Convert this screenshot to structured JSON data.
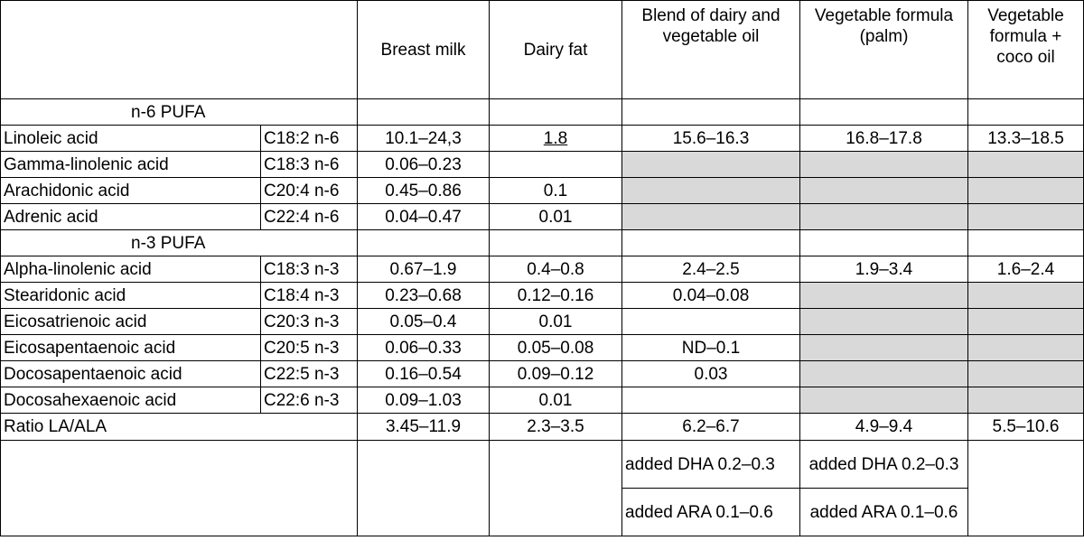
{
  "headers": {
    "breast_milk": "Breast milk",
    "dairy_fat": "Dairy fat",
    "blend": "Blend of dairy and vegetable oil",
    "veg_palm": "Vegetable formula (palm)",
    "veg_coco": "Vegetable formula + coco oil"
  },
  "sections": {
    "n6": "n-6 PUFA",
    "n3": "n-3 PUFA"
  },
  "rows": {
    "linoleic": {
      "name": "Linoleic acid",
      "code": "C18:2 n-6",
      "breast": "10.1–24,3",
      "dairy": "1.8",
      "blend": "15.6–16.3",
      "palm": "16.8–17.8",
      "coco": "13.3–18.5"
    },
    "gamma_linolenic": {
      "name": "Gamma-linolenic acid",
      "code": "C18:3 n-6",
      "breast": "0.06–0.23",
      "dairy": ""
    },
    "arachidonic": {
      "name": "Arachidonic acid",
      "code": "C20:4 n-6",
      "breast": "0.45–0.86",
      "dairy": "0.1"
    },
    "adrenic": {
      "name": "Adrenic acid",
      "code": "C22:4 n-6",
      "breast": "0.04–0.47",
      "dairy": "0.01"
    },
    "alpha_linolenic": {
      "name": "Alpha-linolenic acid",
      "code": "C18:3 n-3",
      "breast": "0.67–1.9",
      "dairy": "0.4–0.8",
      "blend": "2.4–2.5",
      "palm": "1.9–3.4",
      "coco": "1.6–2.4"
    },
    "stearidonic": {
      "name": "Stearidonic acid",
      "code": "C18:4 n-3",
      "breast": "0.23–0.68",
      "dairy": "0.12–0.16",
      "blend": "0.04–0.08"
    },
    "eicosatrienoic": {
      "name": "Eicosatrienoic acid",
      "code": "C20:3 n-3",
      "breast": "0.05–0.4",
      "dairy": "0.01",
      "blend": ""
    },
    "eicosapentaenoic": {
      "name": "Eicosapentaenoic acid",
      "code": "C20:5 n-3",
      "breast": "0.06–0.33",
      "dairy": "0.05–0.08",
      "blend": "ND–0.1"
    },
    "docosapentaenoic": {
      "name": "Docosapentaenoic acid",
      "code": "C22:5 n-3",
      "breast": "0.16–0.54",
      "dairy": "0.09–0.12",
      "blend": "0.03"
    },
    "docosahexaenoic": {
      "name": "Docosahexaenoic acid",
      "code": "C22:6 n-3",
      "breast": "0.09–1.03",
      "dairy": "0.01",
      "blend": ""
    }
  },
  "ratio": {
    "label": "Ratio LA/ALA",
    "breast": "3.45–11.9",
    "dairy": "2.3–3.5",
    "blend": "6.2–6.7",
    "palm": "4.9–9.4",
    "coco": "5.5–10.6"
  },
  "footnotes": {
    "blend_dha": "added DHA 0.2–0.3",
    "blend_ara": "added ARA 0.1–0.6",
    "palm_dha": "added DHA 0.2–0.3",
    "palm_ara": "added ARA 0.1–0.6"
  },
  "colors": {
    "shaded": "#d9d9d9",
    "border": "#000000"
  }
}
